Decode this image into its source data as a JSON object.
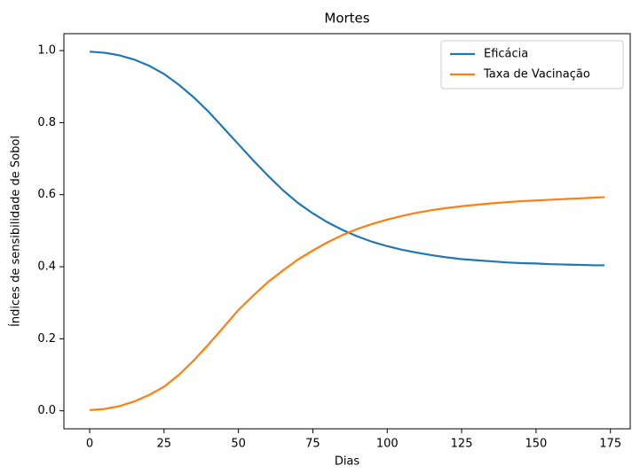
{
  "chart_data": {
    "type": "line",
    "title": "Mortes",
    "xlabel": "Dias",
    "ylabel": "Índices de sensibilidade de Sobol",
    "x": [
      0,
      5,
      10,
      15,
      20,
      25,
      30,
      35,
      40,
      45,
      50,
      55,
      60,
      65,
      70,
      75,
      80,
      85,
      90,
      95,
      100,
      105,
      110,
      115,
      120,
      125,
      130,
      135,
      140,
      145,
      150,
      155,
      160,
      165,
      170,
      173
    ],
    "series": [
      {
        "name": "Eficácia",
        "color": "#1f77b4",
        "values": [
          0.997,
          0.994,
          0.987,
          0.975,
          0.958,
          0.935,
          0.905,
          0.87,
          0.83,
          0.785,
          0.74,
          0.695,
          0.652,
          0.612,
          0.577,
          0.548,
          0.523,
          0.502,
          0.484,
          0.469,
          0.457,
          0.447,
          0.439,
          0.432,
          0.426,
          0.421,
          0.418,
          0.415,
          0.412,
          0.41,
          0.409,
          0.407,
          0.406,
          0.405,
          0.404,
          0.404
        ]
      },
      {
        "name": "Taxa de Vacinação",
        "color": "#ff7f0e",
        "values": [
          0.002,
          0.005,
          0.013,
          0.026,
          0.044,
          0.067,
          0.1,
          0.14,
          0.185,
          0.232,
          0.28,
          0.32,
          0.358,
          0.39,
          0.42,
          0.445,
          0.468,
          0.488,
          0.505,
          0.519,
          0.531,
          0.541,
          0.55,
          0.557,
          0.563,
          0.568,
          0.572,
          0.576,
          0.579,
          0.582,
          0.584,
          0.586,
          0.588,
          0.59,
          0.592,
          0.593
        ]
      }
    ],
    "xlim": [
      -8.65,
      181.65
    ],
    "ylim": [
      -0.05,
      1.047
    ],
    "xticks": [
      0,
      25,
      50,
      75,
      100,
      125,
      150,
      175
    ],
    "yticks": [
      {
        "value": 0,
        "label": "0.0"
      },
      0.2,
      0.4,
      0.6,
      0.8,
      {
        "value": 1,
        "label": "1.0"
      }
    ],
    "legend": "upper right"
  }
}
